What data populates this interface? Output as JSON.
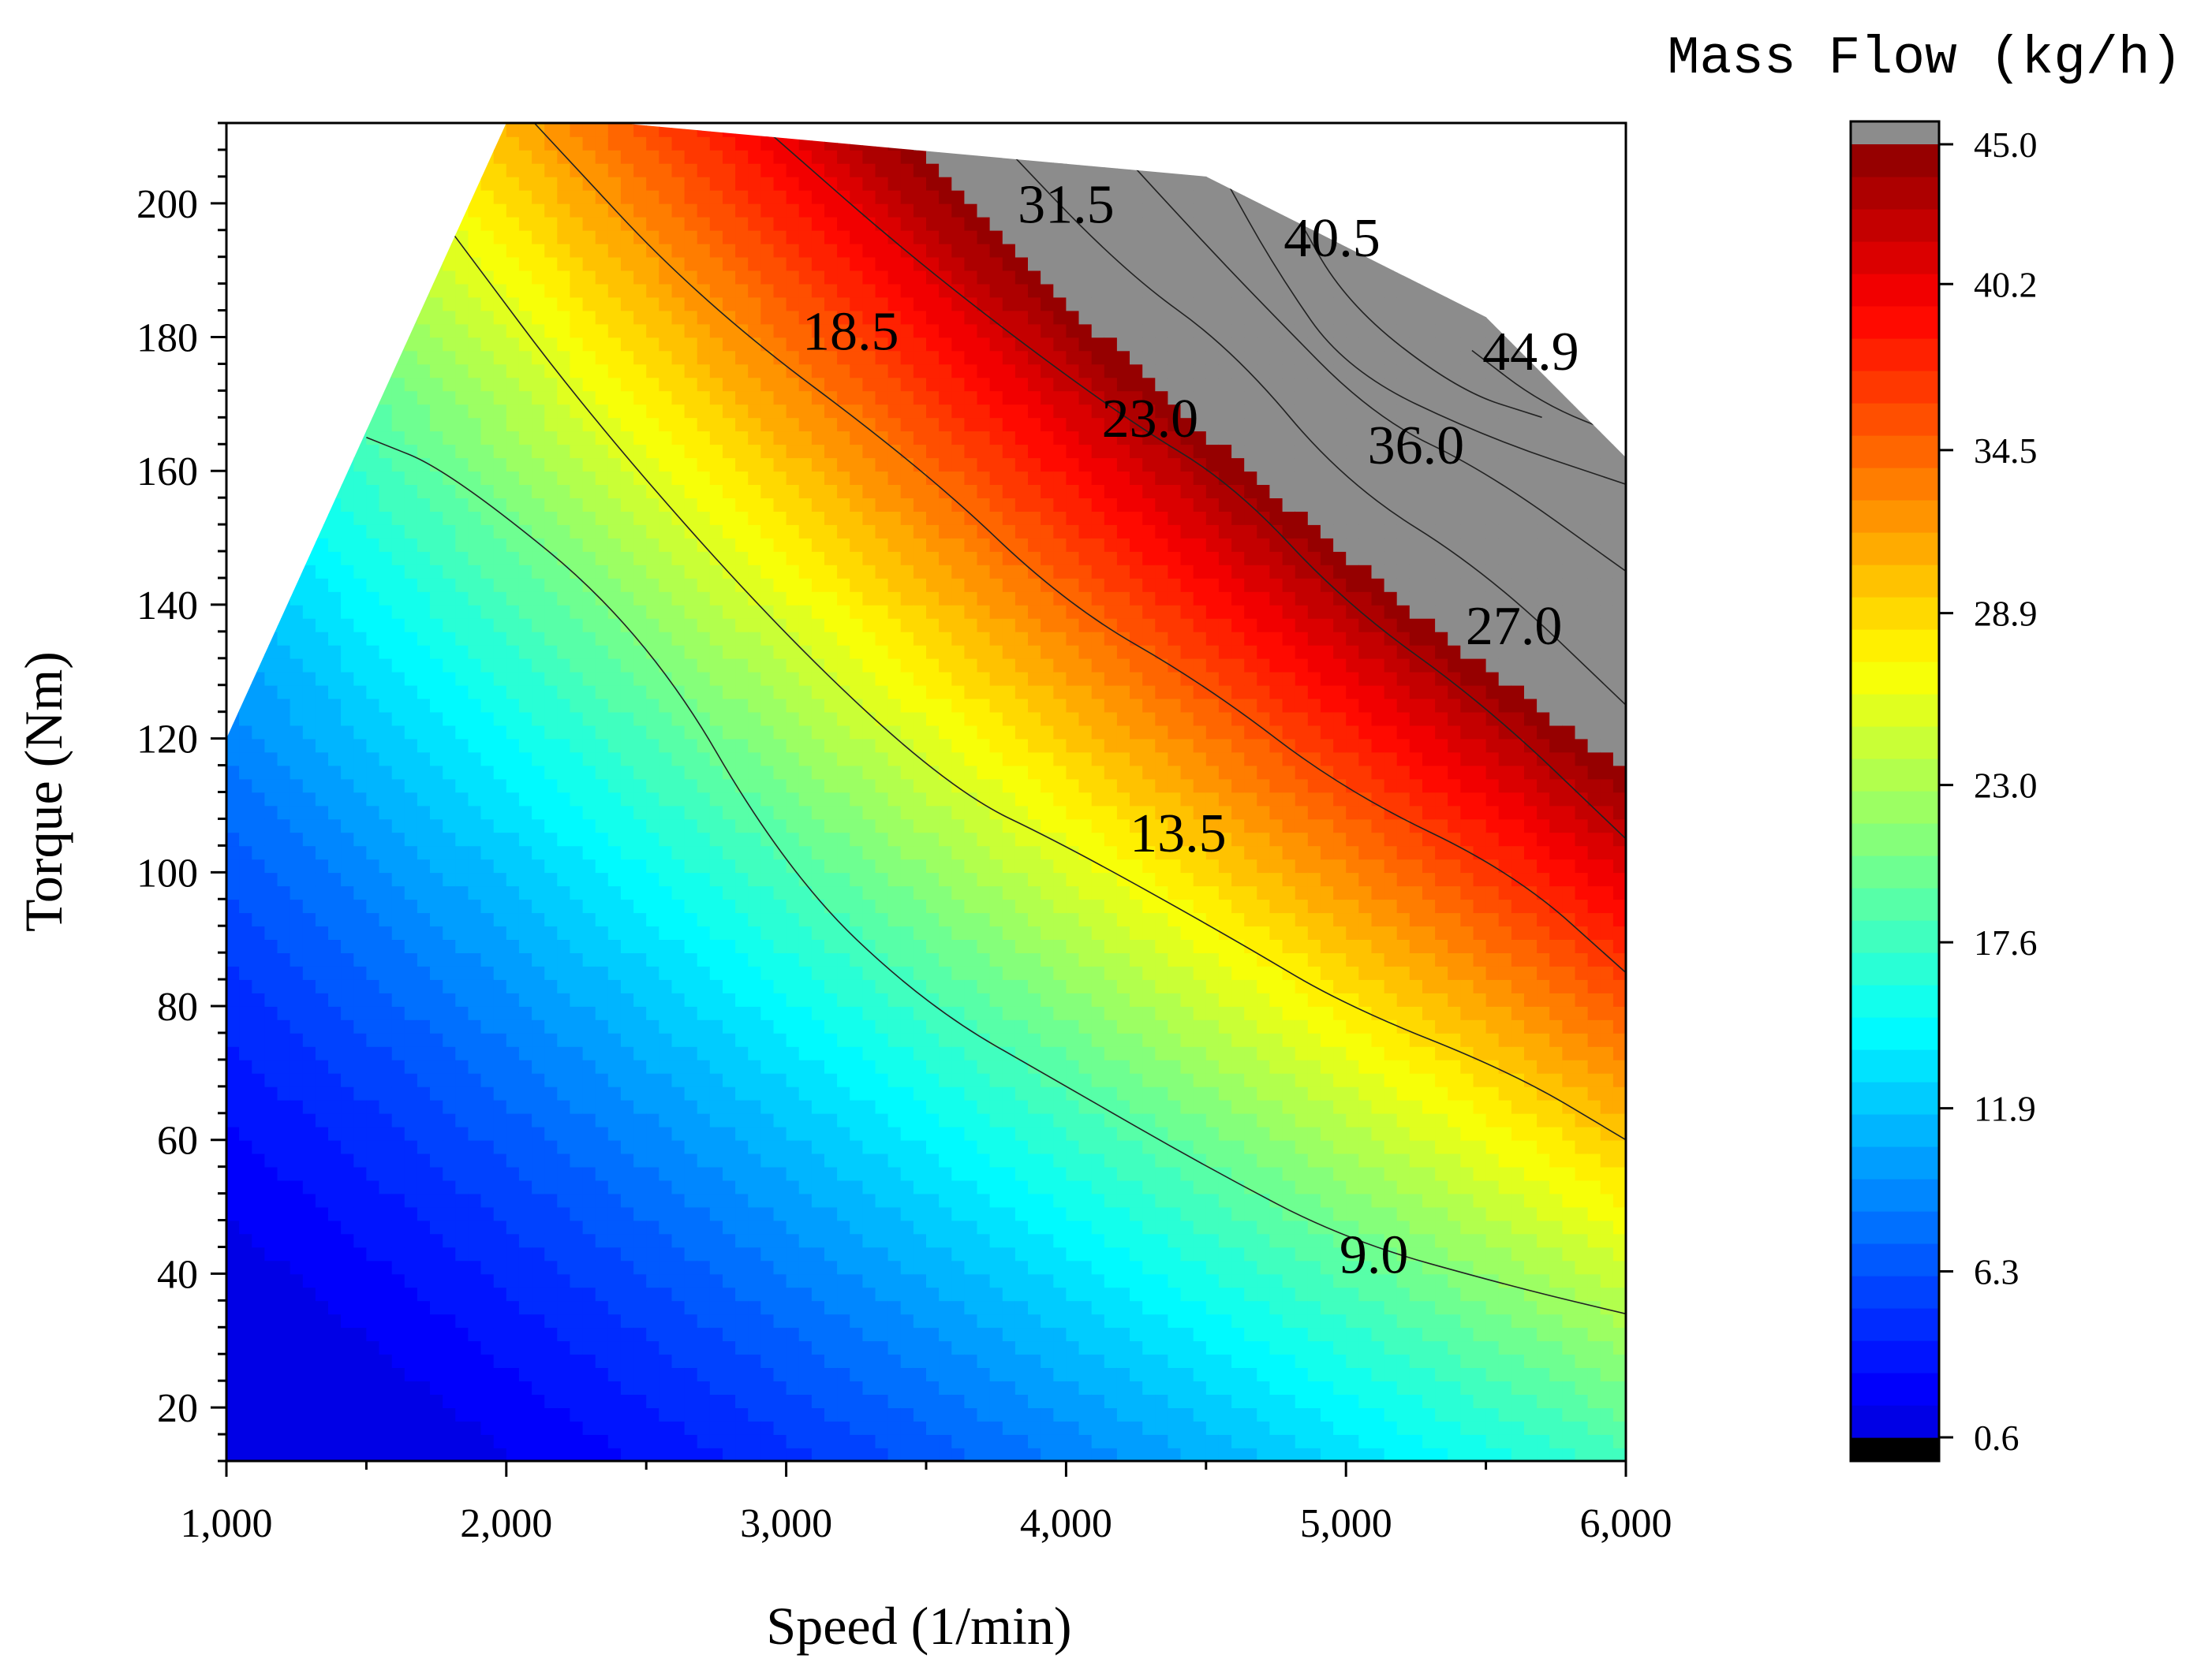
{
  "chart_data": {
    "type": "contour",
    "xlabel": "Speed (1/min)",
    "ylabel": "Torque (Nm)",
    "xlim": [
      1000,
      6000
    ],
    "ylim": [
      12,
      212
    ],
    "x_ticks": [
      1000,
      2000,
      3000,
      4000,
      5000,
      6000
    ],
    "x_tick_labels": [
      "1,000",
      "2,000",
      "3,000",
      "4,000",
      "5,000",
      "6,000"
    ],
    "y_ticks": [
      20,
      40,
      60,
      80,
      100,
      120,
      140,
      160,
      180,
      200
    ],
    "y_tick_labels": [
      "20",
      "40",
      "60",
      "80",
      "100",
      "120",
      "140",
      "160",
      "180",
      "200"
    ],
    "colorbar": {
      "title": "Mass Flow (kg/h)",
      "min": 0.6,
      "max": 45.0,
      "levels": 40,
      "tick_values": [
        0.6,
        6.3,
        11.9,
        17.6,
        23.0,
        28.9,
        34.5,
        40.2,
        45.0
      ],
      "tick_labels": [
        "0.6",
        "6.3",
        "11.9",
        "17.6",
        "23.0",
        "28.9",
        "34.5",
        "40.2",
        "45.0"
      ],
      "under_color": "#000000",
      "over_color": "#8c8c8c"
    },
    "boundary": [
      [
        1000,
        12
      ],
      [
        1000,
        120
      ],
      [
        2000,
        212
      ],
      [
        2400,
        212
      ],
      [
        4500,
        204
      ],
      [
        5500,
        183
      ],
      [
        6000,
        162
      ],
      [
        6000,
        12
      ]
    ],
    "contour_lines": [
      {
        "label": "9.0",
        "label_at": [
          5100,
          42
        ],
        "points": [
          [
            1500,
            165
          ],
          [
            1800,
            160
          ],
          [
            2500,
            136
          ],
          [
            3000,
            100
          ],
          [
            3500,
            80
          ],
          [
            4000,
            68
          ],
          [
            4500,
            56
          ],
          [
            5000,
            45
          ],
          [
            5600,
            38
          ],
          [
            6000,
            34
          ]
        ]
      },
      {
        "label": "13.5",
        "label_at": [
          4400,
          105
        ],
        "points": [
          [
            1800,
            196
          ],
          [
            2300,
            168
          ],
          [
            3000,
            135
          ],
          [
            3600,
            112
          ],
          [
            4000,
            104
          ],
          [
            4600,
            90
          ],
          [
            5000,
            80
          ],
          [
            5600,
            70
          ],
          [
            6000,
            60
          ]
        ]
      },
      {
        "label": "18.5",
        "label_at": [
          3230,
          180
        ],
        "points": [
          [
            2100,
            212
          ],
          [
            2700,
            185
          ],
          [
            3500,
            160
          ],
          [
            4000,
            140
          ],
          [
            4500,
            128
          ],
          [
            5000,
            112
          ],
          [
            5600,
            100
          ],
          [
            6000,
            85
          ]
        ]
      },
      {
        "label": "23.0",
        "label_at": [
          4300,
          167
        ],
        "points": [
          [
            2900,
            212
          ],
          [
            3500,
            190
          ],
          [
            4200,
            168
          ],
          [
            4600,
            158
          ],
          [
            5000,
            140
          ],
          [
            5500,
            125
          ],
          [
            6000,
            105
          ]
        ]
      },
      {
        "label": "27.0",
        "label_at": [
          5600,
          136
        ],
        "points": [
          [
            3700,
            212
          ],
          [
            4200,
            190
          ],
          [
            4600,
            178
          ],
          [
            5000,
            158
          ],
          [
            5500,
            145
          ],
          [
            6000,
            125
          ]
        ]
      },
      {
        "label": "31.5",
        "label_at": [
          4000,
          199
        ],
        "points": [
          [
            4100,
            212
          ],
          [
            4450,
            196
          ],
          [
            4700,
            185
          ],
          [
            5100,
            168
          ],
          [
            5500,
            160
          ],
          [
            6000,
            145
          ]
        ]
      },
      {
        "label": "36.0",
        "label_at": [
          5250,
          163
        ],
        "points": [
          [
            4550,
            205
          ],
          [
            4750,
            190
          ],
          [
            5000,
            175
          ],
          [
            5500,
            165
          ],
          [
            6000,
            158
          ]
        ]
      },
      {
        "label": "40.5",
        "label_at": [
          4950,
          194
        ],
        "points": [
          [
            4800,
            200
          ],
          [
            5000,
            185
          ],
          [
            5400,
            172
          ],
          [
            5700,
            168
          ]
        ]
      },
      {
        "label": "44.9",
        "label_at": [
          5660,
          177
        ],
        "points": [
          [
            5450,
            178
          ],
          [
            5700,
            170
          ],
          [
            6000,
            165
          ]
        ]
      }
    ]
  }
}
